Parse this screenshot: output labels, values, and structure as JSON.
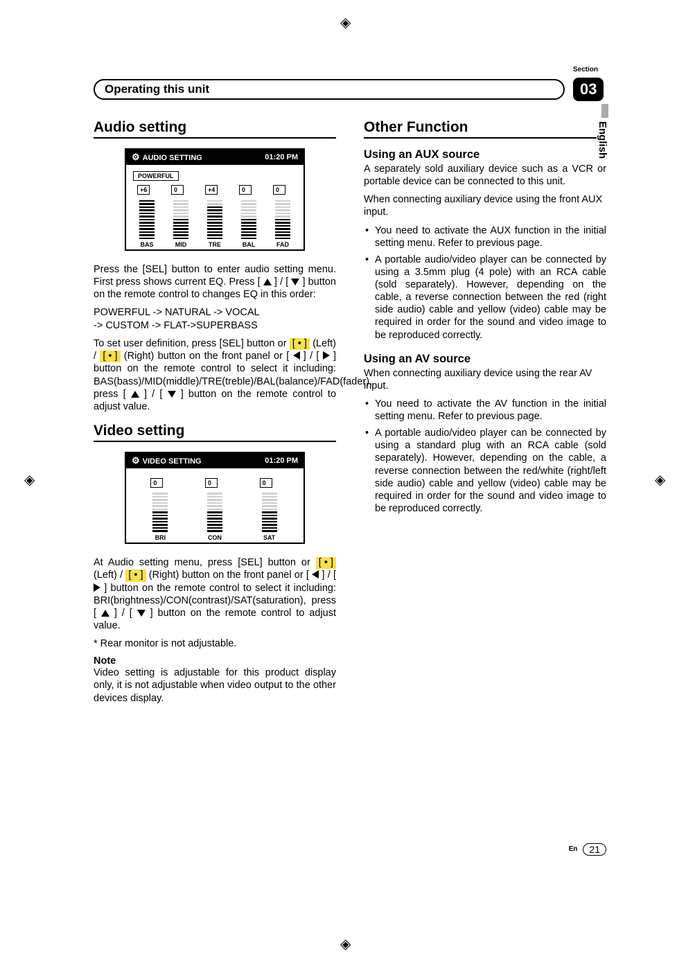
{
  "meta": {
    "section_label": "Section",
    "section_number": "03",
    "header": "Operating this unit",
    "language": "English",
    "page_lang_code": "En",
    "page_number": "21"
  },
  "left": {
    "audio_title": "Audio setting",
    "audio_panel": {
      "title": "AUDIO SETTING",
      "clock": "01:20 PM",
      "preset": "POWERFUL",
      "sliders": [
        {
          "label": "BAS",
          "value": "+6",
          "fill": 13
        },
        {
          "label": "MID",
          "value": "0",
          "fill": 7
        },
        {
          "label": "TRE",
          "value": "+4",
          "fill": 11
        },
        {
          "label": "BAL",
          "value": "0",
          "fill": 7
        },
        {
          "label": "FAD",
          "value": "0",
          "fill": 7
        }
      ]
    },
    "audio_p1a": "Press the [SEL] button to enter audio setting menu. First press shows current EQ. Press [ ",
    "audio_p1b": " ] / [ ",
    "audio_p1c": " ] button on the remote control to changes EQ in this order:",
    "eq_order1": "POWERFUL -> NATURAL -> VOCAL",
    "eq_order2": "-> CUSTOM -> FLAT->SUPERBASS",
    "audio_p2a": "To set user definition, press [SEL] button or ",
    "dot_left": "[ • ]",
    "audio_p2b": " (Left) / ",
    "dot_right": "[ • ]",
    "audio_p2c": " (Right) button on the front panel or [ ",
    "audio_p2d": " ] / [ ",
    "audio_p2e": " ] button on the remote control to select it including: BAS(bass)/MID(middle)/TRE(treble)/BAL(balance)/FAD(fader), press [ ",
    "audio_p2f": " ] / [ ",
    "audio_p2g": " ] button on the remote control to adjust value.",
    "video_title": "Video setting",
    "video_panel": {
      "title": "VIDEO SETTING",
      "clock": "01:20 PM",
      "sliders": [
        {
          "label": "BRI",
          "value": "0",
          "fill": 7
        },
        {
          "label": "CON",
          "value": "0",
          "fill": 7
        },
        {
          "label": "SAT",
          "value": "0",
          "fill": 7
        }
      ]
    },
    "video_p1a": "At Audio setting menu, press [SEL] button or ",
    "video_p1b": " (Left) / ",
    "video_p1c": " (Right) button on the front panel or [ ",
    "video_p1d": " ] / [ ",
    "video_p1e": " ] button on the remote control to select it including: BRI(brightness)/CON(contrast)/SAT(saturation), press [ ",
    "video_p1f": " ] / [ ",
    "video_p1g": " ] button on the remote control to adjust value.",
    "video_note_star": "* Rear monitor is not adjustable.",
    "note_label": "Note",
    "note_text": "Video setting is adjustable for this product display only, it is not adjustable when video output to the other devices display."
  },
  "right": {
    "other_title": "Other Function",
    "aux_title": "Using an AUX source",
    "aux_p1": "A separately sold auxiliary device such as a VCR or portable device can be connected to this unit.",
    "aux_p2": "When connecting auxiliary device using the front AUX input.",
    "aux_b1": "You need to activate the AUX function in the initial setting menu. Refer to previous page.",
    "aux_b2": "A portable audio/video player can be connected by using a 3.5mm plug (4 pole) with an RCA cable (sold separately). However, depending on the cable, a reverse connection between the red (right side audio) cable and yellow (video) cable may be required in order for the sound and video image to be reproduced correctly.",
    "av_title": "Using an AV source",
    "av_p1": "When connecting auxiliary device using the rear AV input.",
    "av_b1": "You need to activate the AV function in the initial setting menu. Refer to previous page.",
    "av_b2": "A portable audio/video player can be connected by using a standard plug with an RCA cable (sold separately). However, depending on the cable, a reverse connection between the red/white (right/left side audio) cable and yellow (video) cable may be required in order for the sound and video image to be reproduced correctly."
  }
}
